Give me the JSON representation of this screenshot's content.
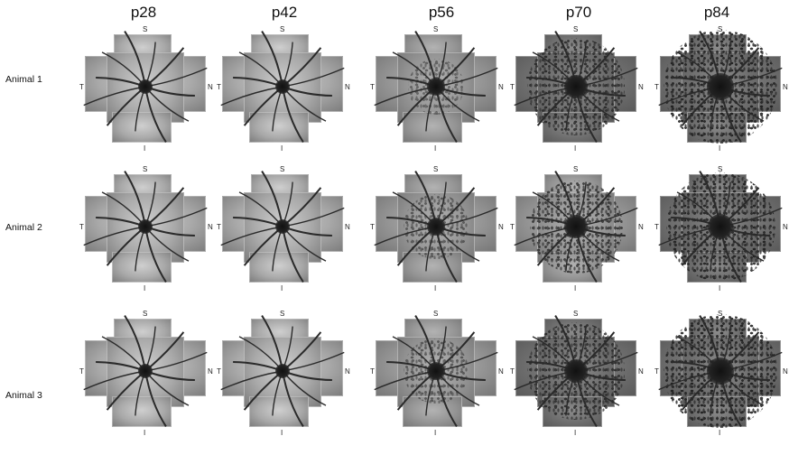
{
  "columns": [
    "p28",
    "p42",
    "p56",
    "p70",
    "p84"
  ],
  "rows": [
    "Animal 1",
    "Animal 2",
    "Animal 3"
  ],
  "orientation": {
    "superior": "S",
    "inferior": "I",
    "temporal": "T",
    "nasal": "N"
  },
  "figure_content": "fundus-image-mosaics"
}
